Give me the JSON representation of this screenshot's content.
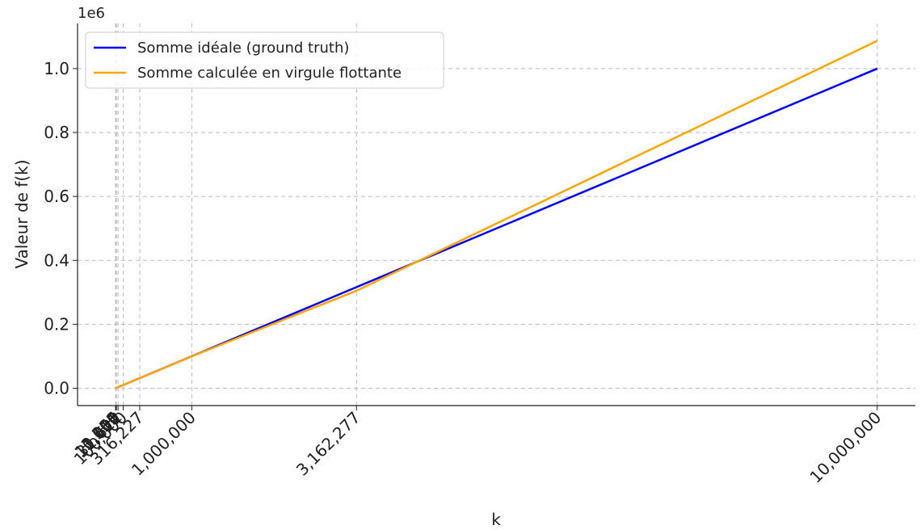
{
  "chart_data": {
    "type": "line",
    "xlabel": "k",
    "ylabel": "Valeur de f(k)",
    "y_offset_text": "1e6",
    "x": [
      1,
      3,
      10,
      31,
      100,
      316,
      1000,
      3162,
      10000,
      31622,
      100000,
      316227,
      1000000,
      3162277,
      10000000
    ],
    "series": [
      {
        "name": "Somme idéale (ground truth)",
        "color": "#0000ff",
        "values": [
          0.1,
          0.3,
          1,
          3.1,
          10,
          31.6,
          100,
          316.2,
          1000,
          3162.2,
          10000,
          31622.7,
          100000,
          316227.7,
          1000000
        ]
      },
      {
        "name": "Somme calculée en virgule flottante",
        "color": "#ffa500",
        "values": [
          0.1,
          0.3,
          1,
          3.1,
          10,
          31.6,
          100,
          316.2,
          1000,
          3162.2,
          10000,
          31622.7,
          99800,
          305000,
          1087000
        ]
      }
    ],
    "xlim": [
      -499999,
      10499999
    ],
    "xticks": [
      1,
      3,
      10,
      31,
      100,
      316,
      {
        "value": 1000,
        "label": "1,000"
      },
      {
        "value": 3162,
        "label": "3,162"
      },
      {
        "value": 10000,
        "label": "10,000"
      },
      {
        "value": 31622,
        "label": "31,622"
      },
      {
        "value": 100000,
        "label": "100,000"
      },
      {
        "value": 316227,
        "label": "316,227"
      },
      {
        "value": 1000000,
        "label": "1,000,000"
      },
      {
        "value": 3162277,
        "label": "3,162,277"
      },
      {
        "value": 10000000,
        "label": "10,000,000"
      }
    ],
    "ylim": [
      -54350,
      1141350
    ],
    "yticks": [
      {
        "value": 0,
        "label": "0.0"
      },
      {
        "value": 200000,
        "label": "0.2"
      },
      {
        "value": 400000,
        "label": "0.4"
      },
      {
        "value": 600000,
        "label": "0.6"
      },
      {
        "value": 800000,
        "label": "0.8"
      },
      {
        "value": 1000000,
        "label": "1.0"
      }
    ],
    "grid": true,
    "legend": "upper left"
  }
}
